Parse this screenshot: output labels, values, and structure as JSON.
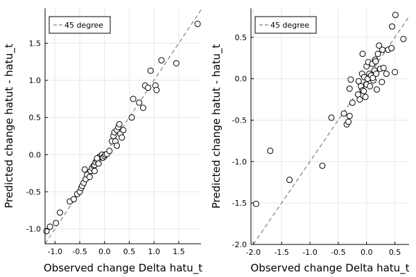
{
  "chart_data": [
    {
      "type": "scatter",
      "xlabel": "Observed change Delta hatu_t",
      "ylabel": "Predicted change hatut - hatu_t",
      "xlim": [
        -1.2,
        1.95
      ],
      "ylim": [
        -1.2,
        1.97
      ],
      "xticks": [
        -1.0,
        -0.5,
        0.0,
        0.5,
        1.0,
        1.5
      ],
      "yticks": [
        -1.0,
        -0.5,
        0.0,
        0.5,
        1.0,
        1.5
      ],
      "xtick_labels": [
        "-1.0",
        "-0.5",
        "0.0",
        "0.5",
        "1.0",
        "1.5"
      ],
      "ytick_labels": [
        "-1.0",
        "-0.5",
        "0.0",
        "0.5",
        "1.0",
        "1.5"
      ],
      "grid": true,
      "legend_position": "top-left",
      "reference_line": {
        "name": "45 degree",
        "style": "dashed",
        "color": "#808080"
      },
      "marker": {
        "shape": "circle",
        "fill": "#ffffff",
        "stroke": "#000000"
      },
      "series": [
        {
          "points": [
            [
              -1.17,
              -1.03
            ],
            [
              -1.1,
              -0.97
            ],
            [
              -0.98,
              -0.92
            ],
            [
              -0.9,
              -0.78
            ],
            [
              -0.7,
              -0.63
            ],
            [
              -0.62,
              -0.6
            ],
            [
              -0.55,
              -0.53
            ],
            [
              -0.5,
              -0.5
            ],
            [
              -0.47,
              -0.45
            ],
            [
              -0.45,
              -0.42
            ],
            [
              -0.42,
              -0.38
            ],
            [
              -0.38,
              -0.33
            ],
            [
              -0.35,
              -0.27
            ],
            [
              -0.4,
              -0.2
            ],
            [
              -0.3,
              -0.3
            ],
            [
              -0.28,
              -0.22
            ],
            [
              -0.25,
              -0.18
            ],
            [
              -0.22,
              -0.15
            ],
            [
              -0.2,
              -0.14
            ],
            [
              -0.18,
              -0.1
            ],
            [
              -0.15,
              -0.08
            ],
            [
              -0.12,
              -0.06
            ],
            [
              -0.1,
              -0.03
            ],
            [
              -0.08,
              -0.02
            ],
            [
              -0.05,
              0.0
            ],
            [
              -0.03,
              -0.04
            ],
            [
              0.0,
              -0.02
            ],
            [
              0.02,
              0.0
            ],
            [
              0.05,
              0.01
            ],
            [
              -0.15,
              -0.05
            ],
            [
              -0.12,
              -0.12
            ],
            [
              -0.2,
              -0.22
            ],
            [
              0.1,
              0.05
            ],
            [
              0.15,
              0.18
            ],
            [
              0.18,
              0.25
            ],
            [
              0.2,
              0.3
            ],
            [
              0.22,
              0.18
            ],
            [
              0.25,
              0.33
            ],
            [
              0.28,
              0.37
            ],
            [
              0.3,
              0.41
            ],
            [
              0.32,
              0.28
            ],
            [
              0.35,
              0.23
            ],
            [
              0.38,
              0.33
            ],
            [
              0.25,
              0.12
            ],
            [
              0.55,
              0.5
            ],
            [
              0.58,
              0.75
            ],
            [
              0.7,
              0.7
            ],
            [
              0.78,
              0.63
            ],
            [
              0.82,
              0.93
            ],
            [
              0.88,
              0.9
            ],
            [
              0.93,
              1.13
            ],
            [
              1.03,
              0.93
            ],
            [
              1.05,
              0.87
            ],
            [
              1.15,
              1.27
            ],
            [
              1.45,
              1.23
            ],
            [
              1.88,
              1.76
            ]
          ]
        }
      ]
    },
    {
      "type": "scatter",
      "xlabel": "Observed change Delta hatu_t",
      "ylabel": "Predicted change hatut - hatu_t",
      "xlim": [
        -2.04,
        0.75
      ],
      "ylim": [
        -2.0,
        0.85
      ],
      "xticks": [
        -2.0,
        -1.5,
        -1.0,
        -0.5,
        0.0,
        0.5
      ],
      "yticks": [
        -2.0,
        -1.5,
        -1.0,
        -0.5,
        0.0,
        0.5
      ],
      "xtick_labels": [
        "-2.0",
        "-1.5",
        "-1.0",
        "-0.5",
        "0.0",
        "0.5"
      ],
      "ytick_labels": [
        "-2.0",
        "-1.5",
        "-1.0",
        "-0.5",
        "0.0",
        "0.5"
      ],
      "grid": true,
      "legend_position": "top-left",
      "reference_line": {
        "name": "45 degree",
        "style": "dashed",
        "color": "#808080"
      },
      "marker": {
        "shape": "circle",
        "fill": "#ffffff",
        "stroke": "#000000"
      },
      "series": [
        {
          "points": [
            [
              -1.95,
              -1.51
            ],
            [
              -1.7,
              -0.87
            ],
            [
              -1.36,
              -1.22
            ],
            [
              -0.78,
              -1.05
            ],
            [
              -0.62,
              -0.47
            ],
            [
              -0.4,
              -0.42
            ],
            [
              -0.35,
              -0.55
            ],
            [
              -0.32,
              -0.52
            ],
            [
              -0.3,
              -0.45
            ],
            [
              -0.25,
              -0.29
            ],
            [
              -0.3,
              -0.12
            ],
            [
              -0.28,
              -0.01
            ],
            [
              -0.15,
              -0.19
            ],
            [
              -0.12,
              -0.25
            ],
            [
              -0.14,
              -0.03
            ],
            [
              -0.1,
              -0.09
            ],
            [
              -0.08,
              0.06
            ],
            [
              -0.07,
              -0.14
            ],
            [
              -0.05,
              -0.15
            ],
            [
              -0.04,
              0.02
            ],
            [
              -0.02,
              -0.22
            ],
            [
              0.0,
              -0.07
            ],
            [
              0.0,
              0.15
            ],
            [
              0.02,
              0.0
            ],
            [
              0.03,
              0.2
            ],
            [
              0.05,
              0.06
            ],
            [
              0.06,
              -0.09
            ],
            [
              0.08,
              0.04
            ],
            [
              0.1,
              0.18
            ],
            [
              0.12,
              -0.02
            ],
            [
              0.14,
              0.1
            ],
            [
              0.15,
              0.23
            ],
            [
              0.17,
              0.06
            ],
            [
              0.18,
              -0.13
            ],
            [
              0.2,
              0.3
            ],
            [
              0.22,
              0.4
            ],
            [
              0.24,
              0.12
            ],
            [
              0.27,
              -0.04
            ],
            [
              0.28,
              0.35
            ],
            [
              0.3,
              0.13
            ],
            [
              0.35,
              0.06
            ],
            [
              0.38,
              0.35
            ],
            [
              0.44,
              0.37
            ],
            [
              0.45,
              0.63
            ],
            [
              0.5,
              0.08
            ],
            [
              0.51,
              0.77
            ],
            [
              0.65,
              0.48
            ],
            [
              -0.07,
              0.3
            ],
            [
              0.16,
              0.21
            ],
            [
              0.11,
              0.01
            ]
          ]
        }
      ]
    }
  ],
  "panels": [
    {
      "legend_label": "45 degree",
      "xlabel": "Observed change Delta hatu_t",
      "ylabel": "Predicted change hatut - hatu_t",
      "xtick_labels": [
        "-1.0",
        "-0.5",
        "0.0",
        "0.5",
        "1.0",
        "1.5"
      ],
      "ytick_labels": [
        "-1.0",
        "-0.5",
        "0.0",
        "0.5",
        "1.0",
        "1.5"
      ]
    },
    {
      "legend_label": "45 degree",
      "xlabel": "Observed change Delta hatu_t",
      "ylabel": "Predicted change hatut - hatu_t",
      "xtick_labels": [
        "-2.0",
        "-1.5",
        "-1.0",
        "-0.5",
        "0.0",
        "0.5"
      ],
      "ytick_labels": [
        "-2.0",
        "-1.5",
        "-1.0",
        "-0.5",
        "0.0",
        "0.5"
      ]
    }
  ]
}
